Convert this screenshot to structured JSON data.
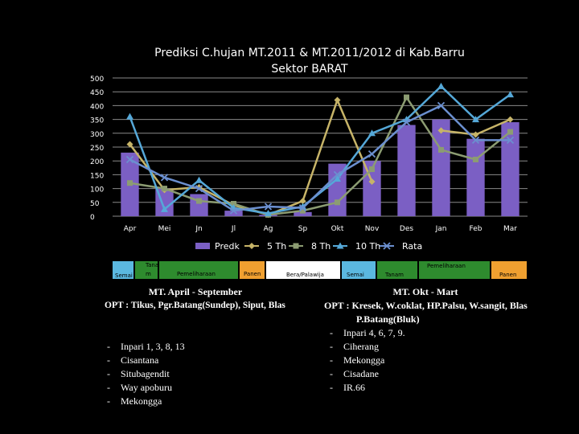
{
  "title": [
    "Prediksi C.hujan MT.2011 & MT.2011/2012 di Kab.Barru",
    "Sektor BARAT"
  ],
  "chart_data": {
    "type": "bar",
    "categories": [
      "Apr",
      "Mei",
      "Jn",
      "Jl",
      "Ag",
      "Sp",
      "Okt",
      "Nov",
      "Des",
      "Jan",
      "Feb",
      "Mar"
    ],
    "ylim": [
      0,
      500
    ],
    "yticks": [
      0,
      50,
      100,
      150,
      200,
      250,
      300,
      350,
      400,
      450,
      500
    ],
    "grid": true,
    "legend_position": "bottom",
    "series": [
      {
        "name": "Predk",
        "kind": "bar",
        "color": "#7b5fc4",
        "values": [
          230,
          100,
          80,
          20,
          5,
          15,
          190,
          200,
          330,
          350,
          280,
          340
        ]
      },
      {
        "name": "5 Th",
        "kind": "line",
        "marker": "diamond",
        "color": "#c7b468",
        "values": [
          260,
          95,
          105,
          40,
          5,
          55,
          420,
          125,
          null,
          310,
          295,
          350
        ]
      },
      {
        "name": "8 Th",
        "kind": "line",
        "marker": "square",
        "color": "#8c9c72",
        "values": [
          120,
          100,
          55,
          45,
          5,
          20,
          50,
          170,
          430,
          240,
          205,
          305
        ]
      },
      {
        "name": "10 Th",
        "kind": "line",
        "marker": "triangle",
        "color": "#55a8d8",
        "values": [
          360,
          25,
          130,
          30,
          10,
          35,
          135,
          300,
          350,
          470,
          350,
          440
        ]
      },
      {
        "name": "Rata",
        "kind": "line",
        "marker": "x",
        "color": "#6b8fcf",
        "values": [
          205,
          140,
          100,
          20,
          35,
          30,
          150,
          225,
          340,
          400,
          275,
          275
        ]
      }
    ]
  },
  "calendar": {
    "segments": [
      {
        "label": "Semai",
        "color": "#5bb8e0"
      },
      {
        "label": "Tanam",
        "label_lines": [
          "Tana",
          "m"
        ],
        "color": "#2e8b2e"
      },
      {
        "label": "Pemeliharaan",
        "color": "#2e8b2e"
      },
      {
        "label": "Panen",
        "color": "#f0a030"
      },
      {
        "label": "Bera/Palawija",
        "color": "#ffffff"
      },
      {
        "label": "Semai",
        "color": "#5bb8e0"
      },
      {
        "label": "Tanam",
        "color": "#2e8b2e"
      },
      {
        "label": "Pemeliharaan",
        "color": "#2e8b2e"
      },
      {
        "label": "Panen",
        "color": "#f0a030"
      }
    ]
  },
  "left_panel": {
    "heading": "MT. April - September",
    "opt": "OPT  :  Tikus, Pgr.Batang(Sundep), Siput, Blas",
    "varieties": [
      "Inpari 1, 3, 8, 13",
      "Cisantana",
      "Situbagendit",
      "Way apoburu",
      "Mekongga"
    ]
  },
  "right_panel": {
    "heading": "MT. Okt - Mart",
    "opt": "OPT  : Kresek, W.coklat, HP.Palsu, W.sangit, Blas",
    "opt_extra": "P.Batang(Bluk)",
    "varieties": [
      "Inpari 4, 6, 7, 9.",
      "Ciherang",
      "Mekongga",
      "Cisadane",
      "IR.66"
    ]
  }
}
